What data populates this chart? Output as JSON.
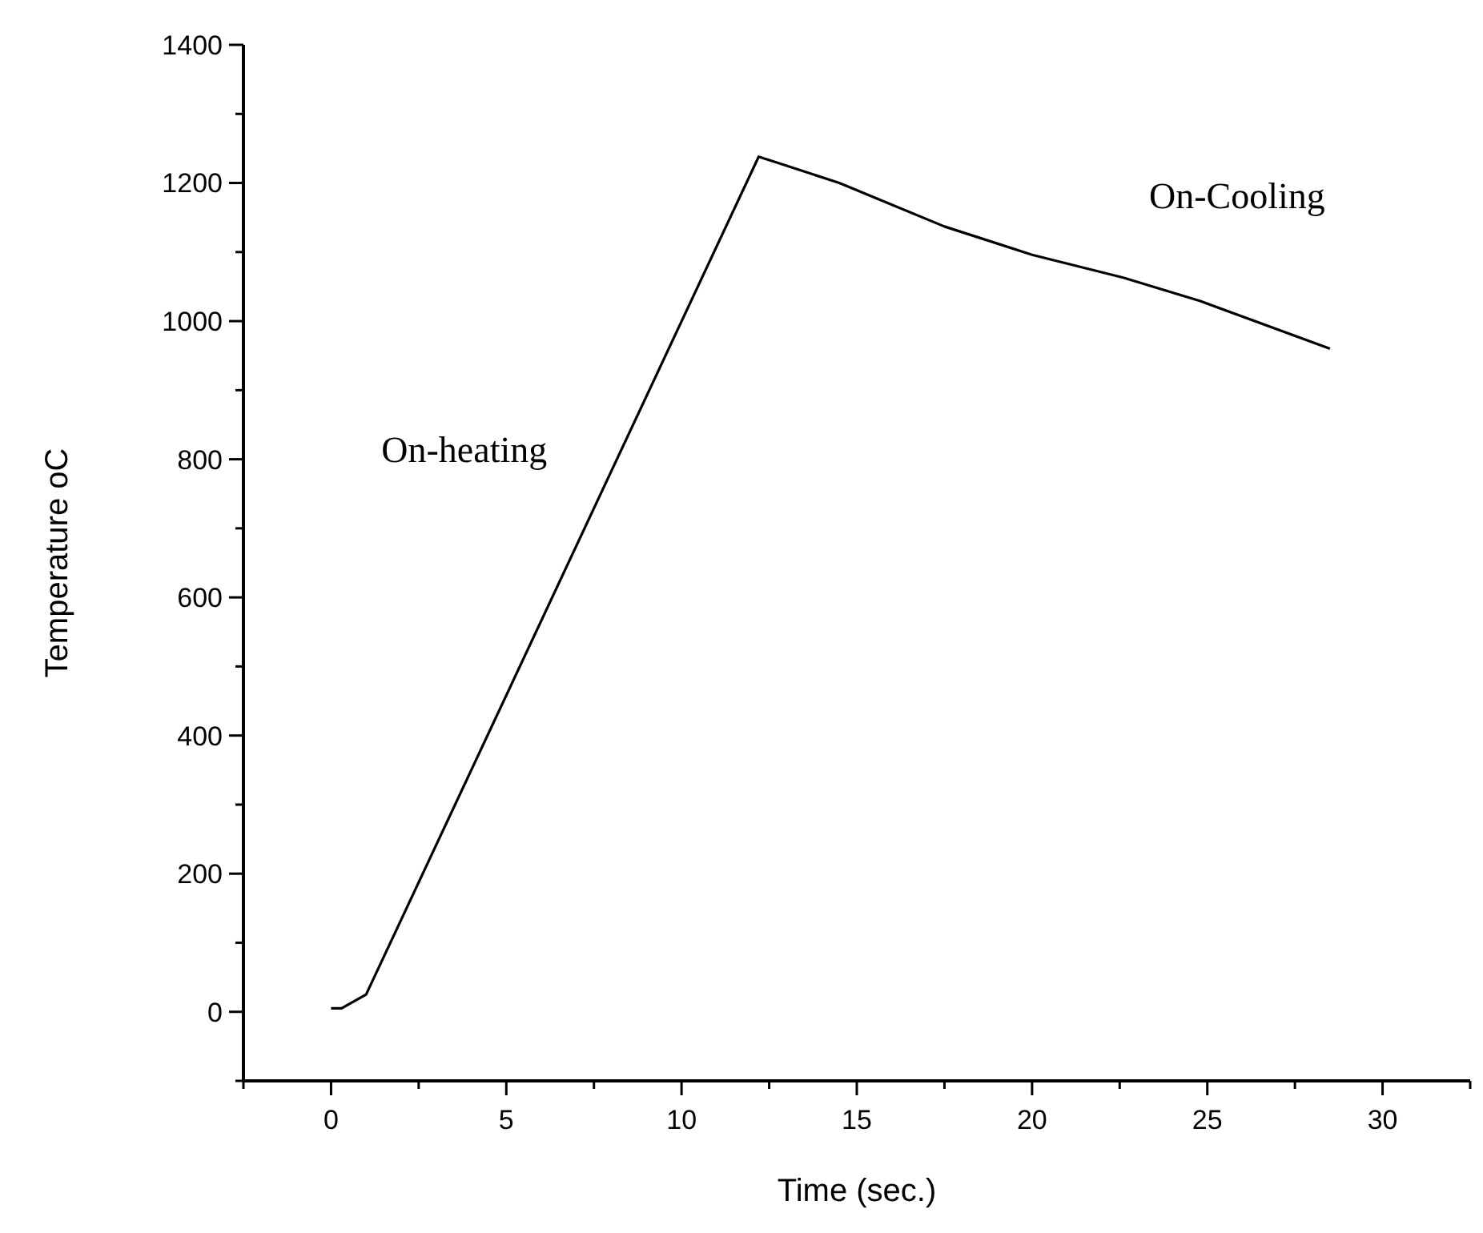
{
  "chart_data": {
    "type": "line",
    "xlabel": "Time (sec.)",
    "ylabel": "Temperature oC",
    "x": [
      0,
      0.3,
      1.0,
      12.2,
      12.7,
      14.5,
      17.5,
      20,
      22.6,
      24.8,
      28.5
    ],
    "series": [
      {
        "color": "#000000",
        "values": [
          5,
          5,
          25,
          1238,
          1230,
          1200,
          1137,
          1096,
          1063,
          1029,
          960
        ]
      }
    ],
    "xlim": [
      -2.5,
      32.5
    ],
    "ylim": [
      -100,
      1400
    ],
    "xticks": [
      {
        "value": -2.5,
        "label": null
      },
      0,
      {
        "value": 2.5,
        "label": null
      },
      5,
      {
        "value": 7.5,
        "label": null
      },
      10,
      {
        "value": 12.5,
        "label": null
      },
      15,
      {
        "value": 17.5,
        "label": null
      },
      20,
      {
        "value": 22.5,
        "label": null
      },
      25,
      {
        "value": 27.5,
        "label": null
      },
      30,
      {
        "value": 32.5,
        "label": null
      }
    ],
    "yticks": [
      {
        "value": -100,
        "label": null
      },
      0,
      {
        "value": 100,
        "label": null
      },
      200,
      {
        "value": 300,
        "label": null
      },
      400,
      {
        "value": 500,
        "label": null
      },
      600,
      {
        "value": 700,
        "label": null
      },
      800,
      {
        "value": 900,
        "label": null
      },
      1000,
      {
        "value": 1100,
        "label": null
      },
      1200,
      {
        "value": 1300,
        "label": null
      },
      1400
    ],
    "annotations": [
      "On-heating",
      "On-Cooling"
    ],
    "grid": false,
    "marker": "none",
    "line_style": "solid"
  }
}
